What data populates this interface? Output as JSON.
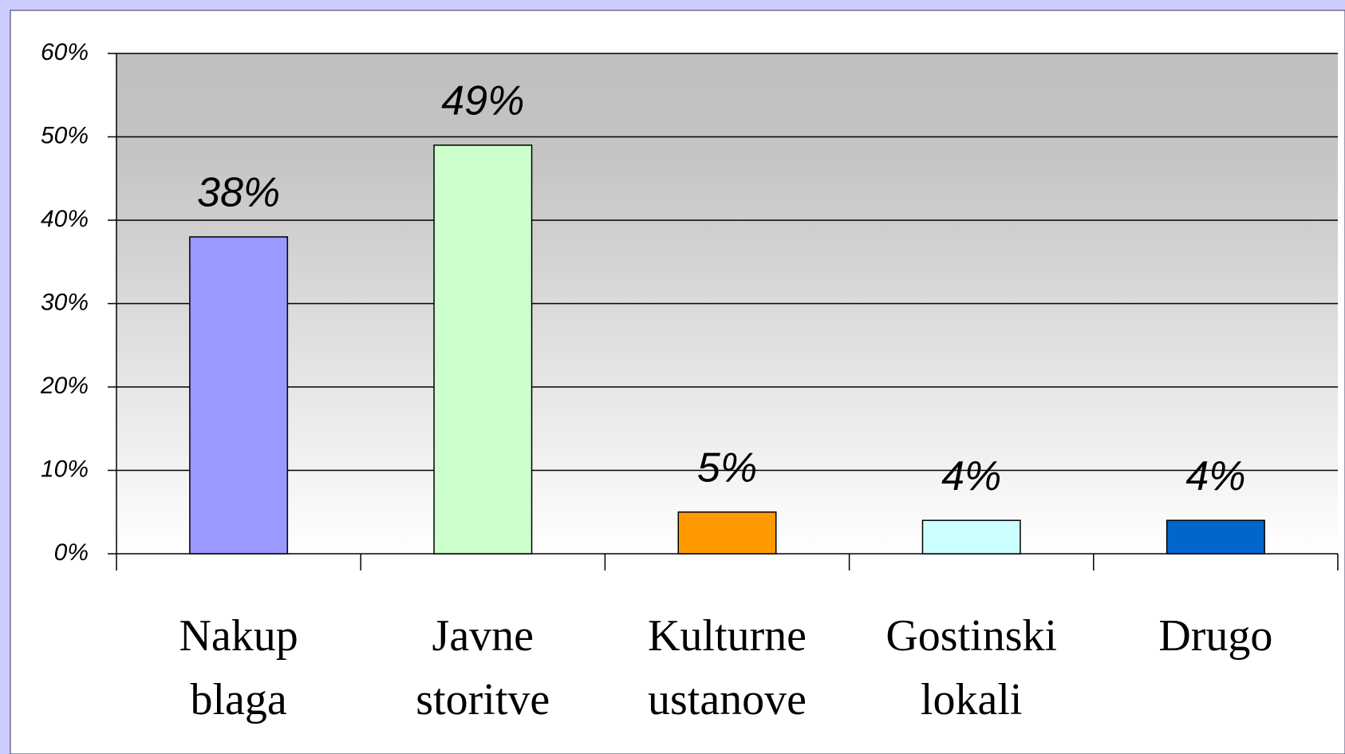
{
  "chart_data": {
    "type": "bar",
    "categories": [
      "Nakup blaga",
      "Javne storitve",
      "Kulturne ustanove",
      "Gostinski lokali",
      "Drugo"
    ],
    "values": [
      38,
      49,
      5,
      4,
      4
    ],
    "value_labels": [
      "38%",
      "49%",
      "5%",
      "4%",
      "4%"
    ],
    "colors": [
      "#9999ff",
      "#ccffcc",
      "#ff9900",
      "#ccffff",
      "#0066cc"
    ],
    "ylim": [
      0,
      60
    ],
    "yticks": [
      {
        "value": 0,
        "label": "0%"
      },
      {
        "value": 10,
        "label": "10%"
      },
      {
        "value": 20,
        "label": "20%"
      },
      {
        "value": 30,
        "label": "30%"
      },
      {
        "value": 40,
        "label": "40%"
      },
      {
        "value": 50,
        "label": "50%"
      },
      {
        "value": 60,
        "label": "60%"
      }
    ],
    "grid": true
  }
}
